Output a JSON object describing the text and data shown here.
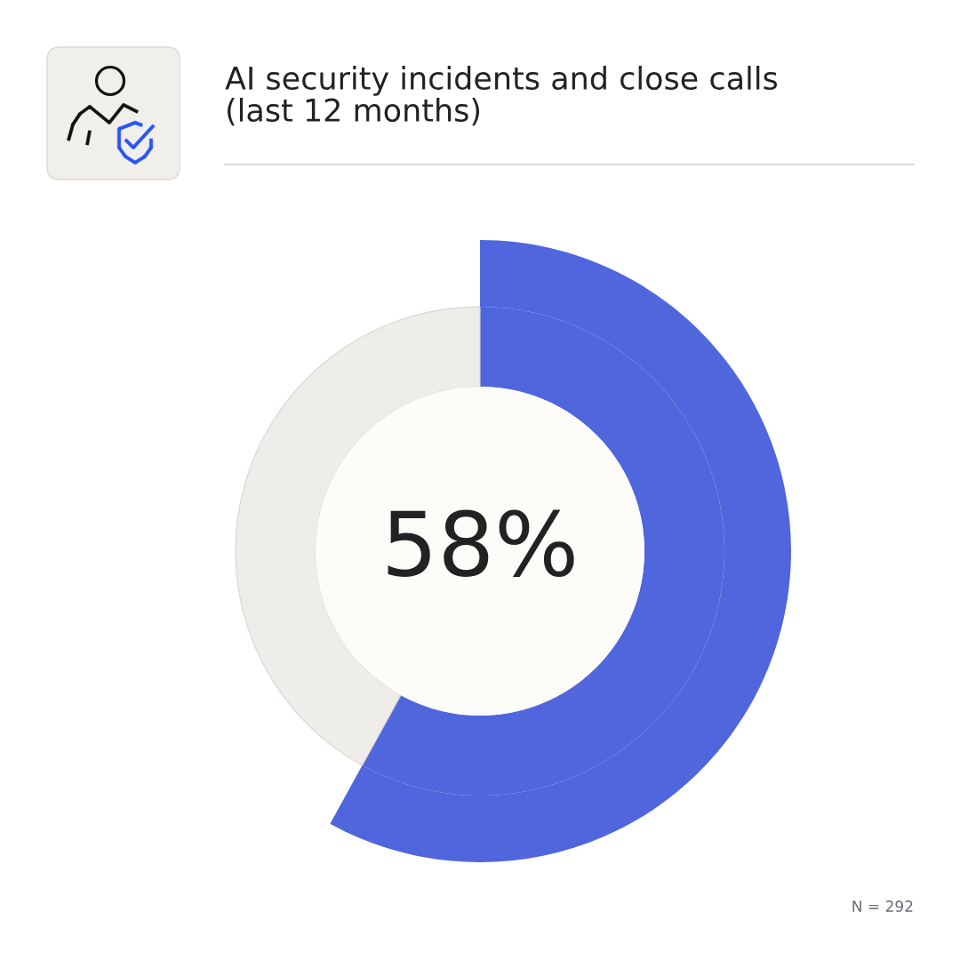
{
  "chart_data": {
    "type": "donut",
    "title": "AI security incidents and close calls\n(last 12 months)",
    "categories": [
      null,
      null
    ],
    "values": [
      58,
      42
    ],
    "colors": [
      "#4f66dc",
      "#efedea"
    ],
    "value_labels": [
      "58%",
      null
    ],
    "annotations": [
      "N = 292"
    ]
  }
}
